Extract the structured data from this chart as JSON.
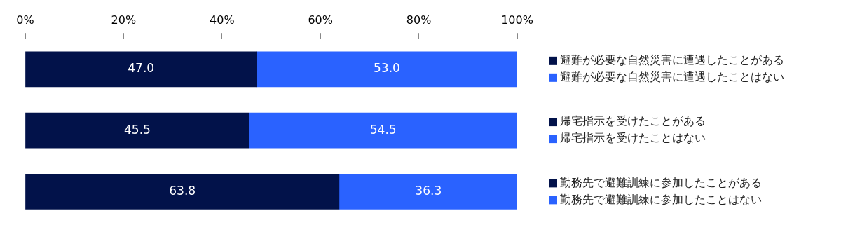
{
  "chart_data": {
    "type": "bar",
    "orientation": "horizontal",
    "stacked": true,
    "categories": [
      null,
      null,
      null
    ],
    "series": [
      {
        "name": "避難が必要な自然災害に遭遇したことがある",
        "color": "#02124a",
        "values": [
          47.0,
          null,
          null
        ],
        "value_labels": [
          "47.0",
          null,
          null
        ]
      },
      {
        "name": "避難が必要な自然災害に遭遇したことはない",
        "color": "#2a62ff",
        "values": [
          53.0,
          null,
          null
        ],
        "value_labels": [
          "53.0",
          null,
          null
        ]
      },
      {
        "name": "帰宅指示を受けたことがある",
        "color": "#02124a",
        "values": [
          null,
          45.5,
          null
        ],
        "value_labels": [
          null,
          "45.5",
          null
        ]
      },
      {
        "name": "帰宅指示を受けたことはない",
        "color": "#2a62ff",
        "values": [
          null,
          54.5,
          null
        ],
        "value_labels": [
          null,
          "54.5",
          null
        ]
      },
      {
        "name": "勤務先で避難訓練に参加したことがある",
        "color": "#02124a",
        "values": [
          null,
          null,
          63.8
        ],
        "value_labels": [
          null,
          null,
          "63.8"
        ]
      },
      {
        "name": "勤務先で避難訓練に参加したことはない",
        "color": "#2a62ff",
        "values": [
          null,
          null,
          36.3
        ],
        "value_labels": [
          null,
          null,
          "36.3"
        ]
      }
    ],
    "xlim": [
      0,
      100
    ],
    "xticks": [
      {
        "value": 0,
        "label": "0%"
      },
      {
        "value": 20,
        "label": "20%"
      },
      {
        "value": 40,
        "label": "40%"
      },
      {
        "value": 60,
        "label": "60%"
      },
      {
        "value": 80,
        "label": "80%"
      },
      {
        "value": 100,
        "label": "100%"
      }
    ],
    "grid": false,
    "legend": "right"
  }
}
